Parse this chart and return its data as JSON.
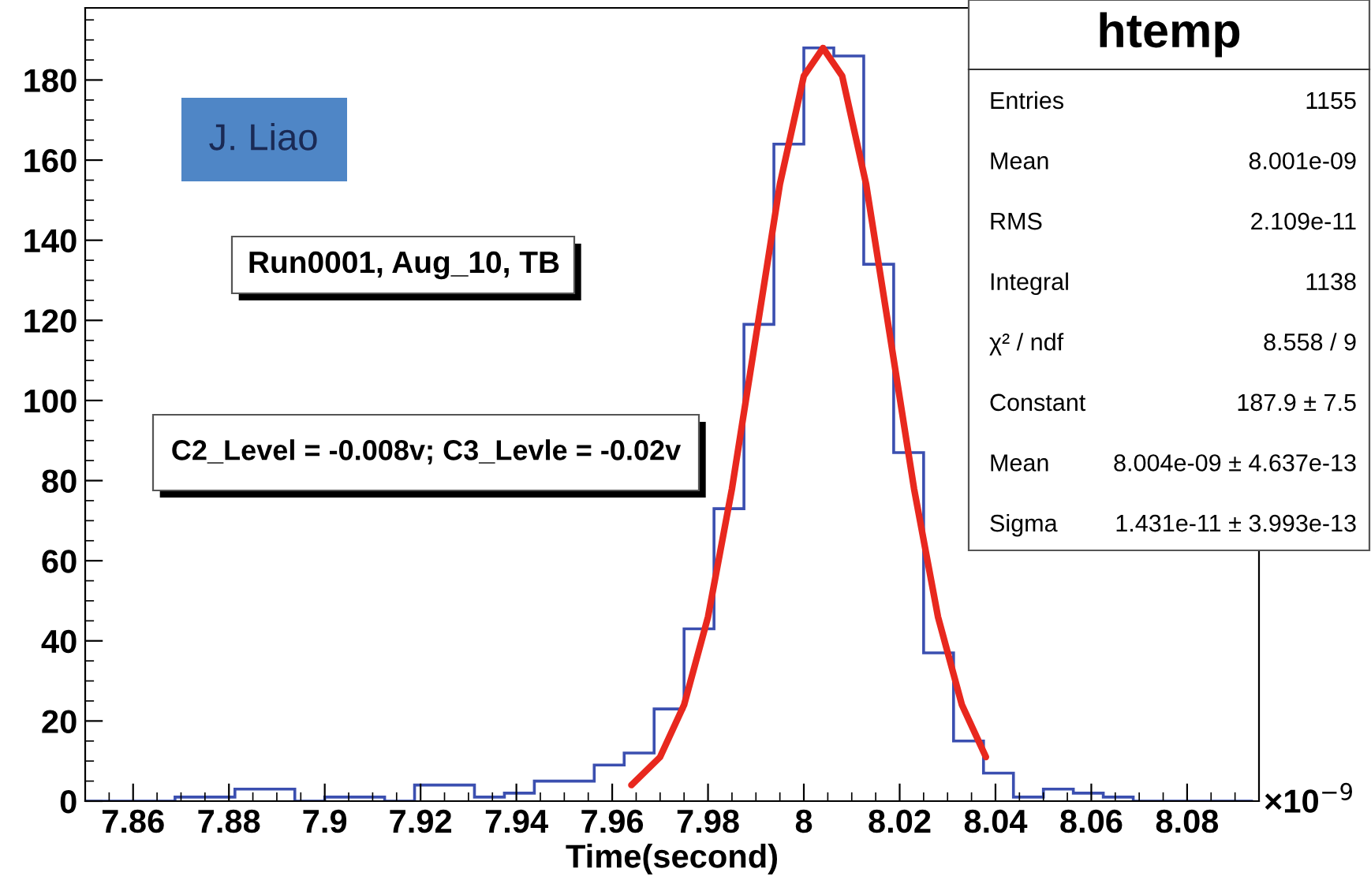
{
  "chart_data": {
    "type": "histogram",
    "xlabel": "Time(second)",
    "annotations": [
      "J. Liao",
      "Run0001, Aug_10, TB",
      "C2_Level = -0.008v; C3_Levle = -0.02v",
      "×10$^{−9}$",
      "htemp",
      "Entries",
      "1155",
      "Mean",
      "8.001e-09",
      "RMS",
      "2.109e-11",
      "Integral",
      "1138",
      "χ² / ndf",
      "8.558 / 9",
      "Constant",
      "187.9 ± 7.5",
      "Mean",
      "8.004e-09 ± 4.637e-13",
      "Sigma",
      "1.431e-11 ± 3.993e-13"
    ],
    "bins": [
      7.85,
      7.85625,
      7.8625,
      7.86875,
      7.875,
      7.88125,
      7.8875,
      7.89375,
      7.9,
      7.90625,
      7.9125,
      7.91875,
      7.925,
      7.93125,
      7.9375,
      7.94375,
      7.95,
      7.95625,
      7.9625,
      7.96875,
      7.975,
      7.98125,
      7.9875,
      7.99375,
      8.0,
      8.00625,
      8.0125,
      8.01875,
      8.025,
      8.03125,
      8.0375,
      8.04375,
      8.05,
      8.05625,
      8.0625,
      8.06875,
      8.075,
      8.08125,
      8.0875,
      8.09375
    ],
    "series": [
      {
        "color": "#3b4fb0",
        "values": [
          0,
          0,
          0,
          1,
          1,
          3,
          3,
          0,
          1,
          1,
          0,
          4,
          4,
          1,
          2,
          5,
          5,
          9,
          12,
          23,
          43,
          73,
          119,
          164,
          188,
          186,
          134,
          87,
          37,
          15,
          7,
          1,
          3,
          2,
          1,
          0,
          0,
          0,
          0
        ]
      },
      {
        "type": "line",
        "color": "#e8281e",
        "x": [
          7.964,
          7.97,
          7.975,
          7.98,
          7.985,
          7.99,
          7.995,
          8.0,
          8.004,
          8.008,
          8.013,
          8.018,
          8.023,
          8.028,
          8.033,
          8.038
        ],
        "values": [
          4,
          11,
          24,
          46,
          78,
          116,
          154,
          181,
          188,
          181,
          154,
          116,
          78,
          46,
          24,
          11
        ]
      }
    ],
    "xlim": [
      7.85,
      8.095
    ],
    "ylim": [
      0,
      198
    ],
    "xticks": [
      7.86,
      7.88,
      7.9,
      7.92,
      7.94,
      7.96,
      7.98,
      8,
      8.02,
      8.04,
      8.06,
      8.08
    ],
    "yticks": [
      0,
      20,
      40,
      60,
      80,
      100,
      120,
      140,
      160,
      180
    ]
  }
}
